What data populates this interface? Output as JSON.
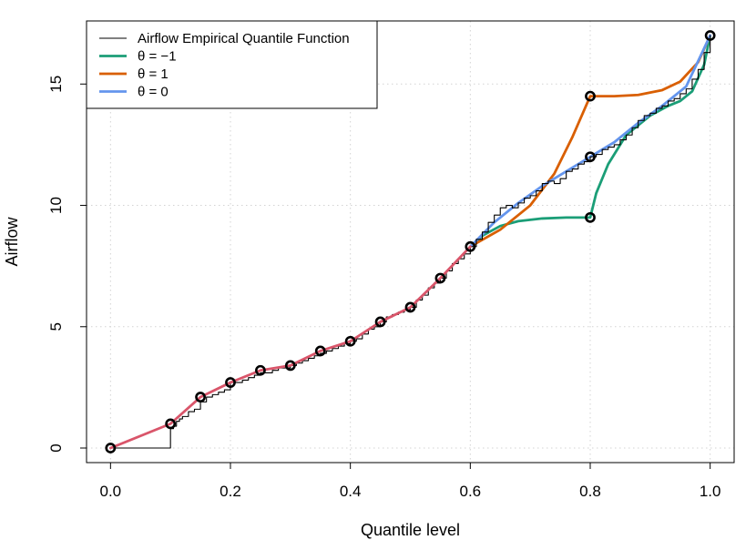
{
  "chart_data": {
    "type": "line",
    "title": "",
    "xlabel": "Quantile level",
    "ylabel": "Airflow",
    "xlim": [
      -0.04,
      1.04
    ],
    "ylim": [
      -0.6,
      17.6
    ],
    "x_ticks": [
      "0.0",
      "0.2",
      "0.4",
      "0.6",
      "0.8",
      "1.0"
    ],
    "y_ticks": [
      "0",
      "5",
      "10",
      "15"
    ],
    "grid": true,
    "legend_position": "top-left",
    "series": [
      {
        "name": "Airflow Empirical Quantile Function",
        "kind": "step",
        "color": "#000000",
        "points": [
          [
            0,
            0
          ],
          [
            0.1,
            0
          ],
          [
            0.1,
            0.8
          ],
          [
            0.105,
            0.9
          ],
          [
            0.11,
            1.1
          ],
          [
            0.115,
            1.2
          ],
          [
            0.12,
            1.3
          ],
          [
            0.13,
            1.5
          ],
          [
            0.14,
            1.6
          ],
          [
            0.15,
            1.9
          ],
          [
            0.16,
            2.1
          ],
          [
            0.17,
            2.2
          ],
          [
            0.18,
            2.3
          ],
          [
            0.19,
            2.4
          ],
          [
            0.2,
            2.7
          ],
          [
            0.21,
            2.7
          ],
          [
            0.22,
            2.8
          ],
          [
            0.23,
            2.9
          ],
          [
            0.24,
            3.0
          ],
          [
            0.25,
            3.1
          ],
          [
            0.26,
            3.1
          ],
          [
            0.27,
            3.2
          ],
          [
            0.28,
            3.3
          ],
          [
            0.29,
            3.3
          ],
          [
            0.3,
            3.4
          ],
          [
            0.31,
            3.5
          ],
          [
            0.32,
            3.6
          ],
          [
            0.33,
            3.7
          ],
          [
            0.34,
            3.8
          ],
          [
            0.35,
            3.9
          ],
          [
            0.36,
            4.0
          ],
          [
            0.37,
            4.1
          ],
          [
            0.38,
            4.2
          ],
          [
            0.39,
            4.3
          ],
          [
            0.4,
            4.4
          ],
          [
            0.41,
            4.5
          ],
          [
            0.42,
            4.7
          ],
          [
            0.43,
            4.9
          ],
          [
            0.44,
            5.0
          ],
          [
            0.45,
            5.2
          ],
          [
            0.46,
            5.4
          ],
          [
            0.47,
            5.5
          ],
          [
            0.48,
            5.6
          ],
          [
            0.49,
            5.7
          ],
          [
            0.5,
            5.8
          ],
          [
            0.51,
            6.1
          ],
          [
            0.52,
            6.3
          ],
          [
            0.53,
            6.6
          ],
          [
            0.54,
            6.8
          ],
          [
            0.55,
            7.0
          ],
          [
            0.56,
            7.3
          ],
          [
            0.57,
            7.6
          ],
          [
            0.58,
            7.8
          ],
          [
            0.59,
            8.0
          ],
          [
            0.6,
            8.3
          ],
          [
            0.61,
            8.6
          ],
          [
            0.62,
            8.9
          ],
          [
            0.63,
            9.3
          ],
          [
            0.64,
            9.6
          ],
          [
            0.65,
            9.9
          ],
          [
            0.66,
            10.0
          ],
          [
            0.67,
            9.9
          ],
          [
            0.68,
            10.1
          ],
          [
            0.69,
            10.3
          ],
          [
            0.7,
            10.4
          ],
          [
            0.71,
            10.6
          ],
          [
            0.72,
            10.9
          ],
          [
            0.73,
            11.0
          ],
          [
            0.74,
            10.9
          ],
          [
            0.75,
            11.1
          ],
          [
            0.76,
            11.4
          ],
          [
            0.77,
            11.5
          ],
          [
            0.78,
            11.7
          ],
          [
            0.79,
            11.8
          ],
          [
            0.8,
            12.0
          ],
          [
            0.81,
            12.1
          ],
          [
            0.82,
            12.3
          ],
          [
            0.83,
            12.4
          ],
          [
            0.84,
            12.5
          ],
          [
            0.85,
            12.7
          ],
          [
            0.86,
            12.9
          ],
          [
            0.87,
            13.2
          ],
          [
            0.88,
            13.5
          ],
          [
            0.89,
            13.7
          ],
          [
            0.9,
            13.8
          ],
          [
            0.91,
            14.0
          ],
          [
            0.92,
            14.1
          ],
          [
            0.93,
            14.3
          ],
          [
            0.94,
            14.4
          ],
          [
            0.95,
            14.6
          ],
          [
            0.96,
            14.8
          ],
          [
            0.97,
            15.2
          ],
          [
            0.98,
            15.6
          ],
          [
            0.99,
            16.3
          ],
          [
            1.0,
            17.0
          ]
        ]
      },
      {
        "name": "θ = −1",
        "kind": "line",
        "color": "#1b9e77",
        "points": [
          [
            0.6,
            8.3
          ],
          [
            0.62,
            8.75
          ],
          [
            0.65,
            9.15
          ],
          [
            0.68,
            9.35
          ],
          [
            0.72,
            9.46
          ],
          [
            0.76,
            9.5
          ],
          [
            0.8,
            9.5
          ],
          [
            0.81,
            10.5
          ],
          [
            0.83,
            11.7
          ],
          [
            0.86,
            12.9
          ],
          [
            0.9,
            13.7
          ],
          [
            0.93,
            14.1
          ],
          [
            0.95,
            14.3
          ],
          [
            0.97,
            14.7
          ],
          [
            0.99,
            15.8
          ],
          [
            1.0,
            17.0
          ]
        ]
      },
      {
        "name": "θ = 1",
        "kind": "line",
        "color": "#d95f02",
        "points": [
          [
            0.6,
            8.3
          ],
          [
            0.65,
            9.0
          ],
          [
            0.7,
            10.0
          ],
          [
            0.74,
            11.3
          ],
          [
            0.77,
            12.8
          ],
          [
            0.8,
            14.5
          ],
          [
            0.84,
            14.5
          ],
          [
            0.88,
            14.55
          ],
          [
            0.92,
            14.75
          ],
          [
            0.95,
            15.1
          ],
          [
            0.98,
            15.9
          ],
          [
            1.0,
            17.0
          ]
        ]
      },
      {
        "name": "θ = 0",
        "kind": "line",
        "color": "#6495ed",
        "points": [
          [
            0.6,
            8.3
          ],
          [
            0.64,
            9.3
          ],
          [
            0.68,
            10.1
          ],
          [
            0.72,
            10.8
          ],
          [
            0.76,
            11.4
          ],
          [
            0.8,
            12.0
          ],
          [
            0.84,
            12.6
          ],
          [
            0.88,
            13.4
          ],
          [
            0.92,
            14.1
          ],
          [
            0.96,
            14.9
          ],
          [
            1.0,
            17.0
          ]
        ]
      },
      {
        "name": "",
        "kind": "line",
        "color": "#d9556a",
        "points": [
          [
            0,
            0
          ],
          [
            0.1,
            1.0
          ],
          [
            0.15,
            2.1
          ],
          [
            0.2,
            2.7
          ],
          [
            0.25,
            3.2
          ],
          [
            0.3,
            3.4
          ],
          [
            0.35,
            4.0
          ],
          [
            0.4,
            4.4
          ],
          [
            0.45,
            5.2
          ],
          [
            0.5,
            5.8
          ],
          [
            0.55,
            7.0
          ],
          [
            0.6,
            8.3
          ]
        ]
      }
    ],
    "markers": [
      [
        0,
        0
      ],
      [
        0.1,
        1.0
      ],
      [
        0.15,
        2.1
      ],
      [
        0.2,
        2.7
      ],
      [
        0.25,
        3.2
      ],
      [
        0.3,
        3.4
      ],
      [
        0.35,
        4.0
      ],
      [
        0.4,
        4.4
      ],
      [
        0.45,
        5.2
      ],
      [
        0.5,
        5.8
      ],
      [
        0.55,
        7.0
      ],
      [
        0.6,
        8.3
      ],
      [
        0.8,
        14.5
      ],
      [
        0.8,
        12.0
      ],
      [
        0.8,
        9.5
      ],
      [
        1.0,
        17.0
      ]
    ],
    "legend": {
      "items": [
        {
          "label": "Airflow Empirical Quantile Function",
          "color": "#000000",
          "thin": true
        },
        {
          "label": "θ  = −1",
          "color": "#1b9e77",
          "thin": false
        },
        {
          "label": "θ  = 1",
          "color": "#d95f02",
          "thin": false
        },
        {
          "label": "θ  = 0",
          "color": "#6495ed",
          "thin": false
        }
      ]
    }
  }
}
